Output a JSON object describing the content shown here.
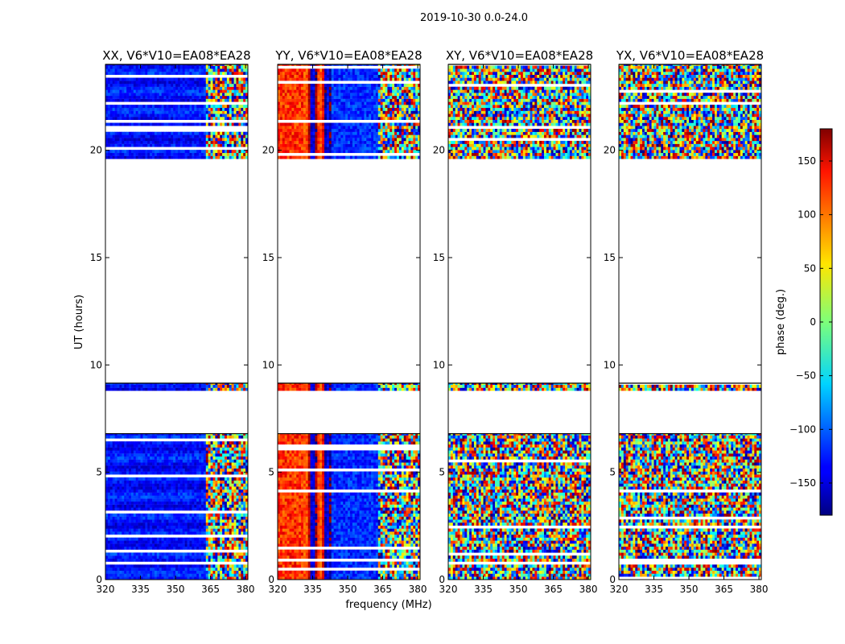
{
  "suptitle": "2019-10-30 0.0-24.0",
  "chart_data": {
    "type": "heatmap",
    "xlabel": "frequency (MHz)",
    "ylabel": "UT (hours)",
    "xlim": [
      320,
      381
    ],
    "ylim": [
      0,
      24
    ],
    "xticks": [
      320,
      335,
      350,
      365,
      380
    ],
    "yticks": [
      0,
      5,
      10,
      15,
      20
    ],
    "panels": [
      {
        "title": "XX, V6*V10=EA08*EA28",
        "pattern": "xx"
      },
      {
        "title": "YY, V6*V10=EA08*EA28",
        "pattern": "yy"
      },
      {
        "title": "XY, V6*V10=EA08*EA28",
        "pattern": "xy"
      },
      {
        "title": "YX, V6*V10=EA08*EA28",
        "pattern": "xy"
      }
    ],
    "data_time_ranges_hours": [
      [
        0.0,
        6.8
      ],
      [
        8.8,
        9.15
      ],
      [
        19.6,
        24.0
      ]
    ],
    "colorbar": {
      "label": "phase (deg.)",
      "range": [
        -180,
        180
      ],
      "ticks": [
        -150,
        -100,
        -50,
        0,
        50,
        100,
        150
      ],
      "tick_labels": [
        "−150",
        "−100",
        "−50",
        "0",
        "50",
        "100",
        "150"
      ],
      "colormap": "jet"
    }
  }
}
